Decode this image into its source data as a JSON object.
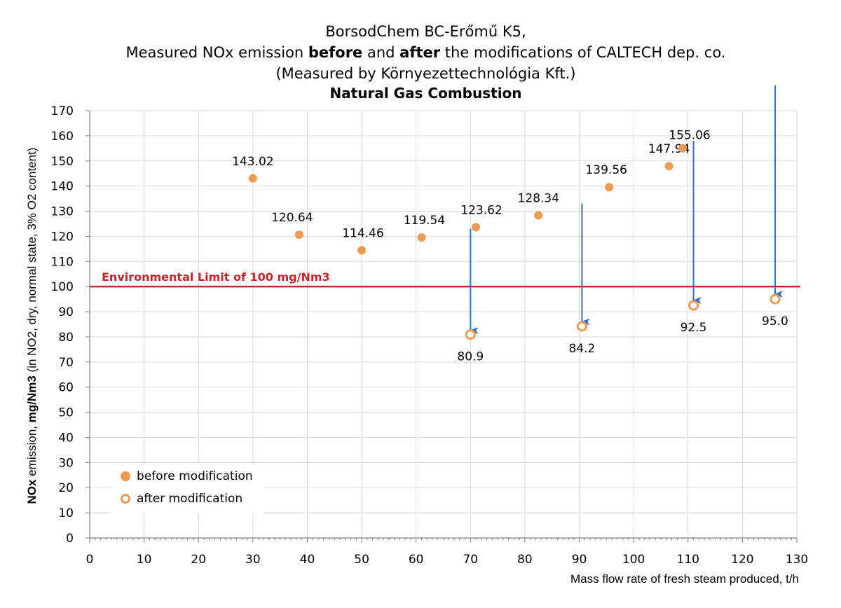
{
  "title": {
    "line1": "BorsodChem BC-Erőmű K5,",
    "line2_a": "Measured NOx emission ",
    "line2_b": "before",
    "line2_c": " and ",
    "line2_d": "after",
    "line2_e": " the modifications of CALTECH dep. co.",
    "line3": "(Measured by Környezettechnológia Kft.)",
    "subtitle": "Natural Gas Combustion"
  },
  "axes": {
    "ylabel_a": "NOx",
    "ylabel_b": " emission, ",
    "ylabel_c": "mg/Nm3",
    "ylabel_d": " (in NO2, dry, normal state, 3% O2 content)",
    "xlabel": "Mass flow rate of fresh steam produced, t/h"
  },
  "legend": {
    "before_label": "before modification",
    "after_label": "after modification"
  },
  "colors": {
    "marker": "#ED9A55",
    "limit_line": "#C0262A",
    "arrow": "#2E6CD6",
    "grid": "#D9D9D9",
    "axis": "#808080"
  },
  "chart_data": {
    "type": "scatter",
    "xlim": [
      0,
      130
    ],
    "ylim": [
      0,
      170
    ],
    "x_ticks": [
      0,
      10,
      20,
      30,
      40,
      50,
      60,
      70,
      80,
      90,
      100,
      110,
      120,
      130
    ],
    "y_ticks": [
      0,
      10,
      20,
      30,
      40,
      50,
      60,
      70,
      80,
      90,
      100,
      110,
      120,
      130,
      140,
      150,
      160,
      170
    ],
    "grid": true,
    "legend_position": "bottom-left",
    "series": [
      {
        "name": "before modification",
        "marker": "filled-circle",
        "points": [
          {
            "x": 30,
            "y": 143.02,
            "label": "143.02"
          },
          {
            "x": 38.5,
            "y": 120.64,
            "label": "120.64"
          },
          {
            "x": 50,
            "y": 114.46,
            "label": "114.46"
          },
          {
            "x": 61,
            "y": 119.54,
            "label": "119.54"
          },
          {
            "x": 71,
            "y": 123.62,
            "label": "123.62"
          },
          {
            "x": 82.5,
            "y": 128.34,
            "label": "128.34"
          },
          {
            "x": 95.5,
            "y": 139.56,
            "label": "139.56"
          },
          {
            "x": 106.5,
            "y": 147.94,
            "label": "147.94"
          },
          {
            "x": 109,
            "y": 155.06,
            "label": "155.06"
          }
        ]
      },
      {
        "name": "after modification",
        "marker": "hollow-circle",
        "points": [
          {
            "x": 70,
            "y": 80.9,
            "label": "80.9"
          },
          {
            "x": 90.5,
            "y": 84.2,
            "label": "84.2"
          },
          {
            "x": 111,
            "y": 92.5,
            "label": "92.5"
          },
          {
            "x": 126,
            "y": 95.0,
            "label": "95.0"
          }
        ]
      }
    ],
    "reference_line": {
      "y": 100,
      "label": "Environmental Limit of 100 mg/Nm3"
    },
    "arrows": [
      {
        "x": 70,
        "y_from": 123,
        "y_to": 82.5
      },
      {
        "x": 90.5,
        "y_from": 133,
        "y_to": 86
      },
      {
        "x": 111,
        "y_from": 158,
        "y_to": 94.5
      },
      {
        "x": 126,
        "y_from": 180,
        "y_to": 97
      }
    ]
  }
}
